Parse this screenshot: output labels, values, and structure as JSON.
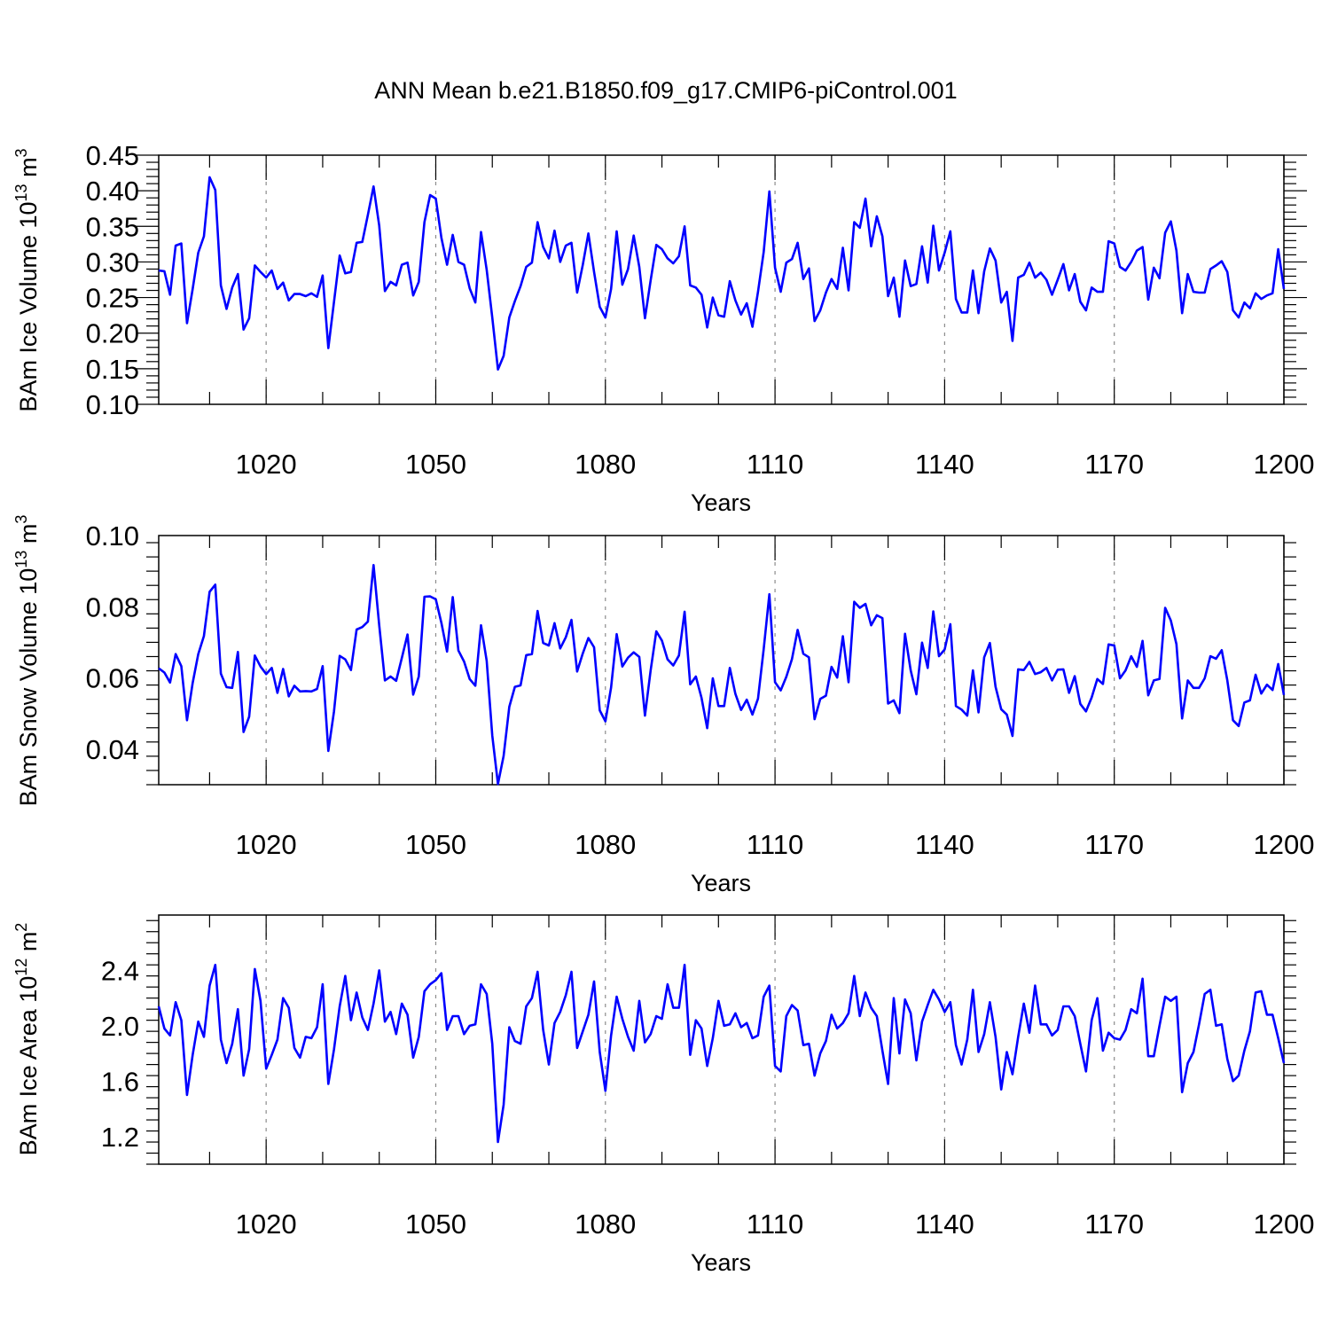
{
  "title": "ANN Mean b.e21.B1850.f09_g17.CMIP6-piControl.001",
  "line_color": "#0000ff",
  "chart_data": [
    {
      "type": "line",
      "ylabel": "BAm Ice Volume 10",
      "ylabel_exp": "13",
      "ylabel_unit": " m",
      "ylabel_unit_exp": "3",
      "xlabel": "Years",
      "xlim": [
        1001,
        1200
      ],
      "ylim": [
        0.1,
        0.45
      ],
      "xticks": [
        1020,
        1050,
        1080,
        1110,
        1140,
        1170,
        1200
      ],
      "xtick_labels": [
        "1020",
        "1050",
        "1080",
        "1110",
        "1140",
        "1170",
        "1200"
      ],
      "yticks": [
        0.1,
        0.15,
        0.2,
        0.25,
        0.3,
        0.35,
        0.4,
        0.45
      ],
      "ytick_labels": [
        "0.10",
        "0.15",
        "0.20",
        "0.25",
        "0.30",
        "0.35",
        "0.40",
        "0.45"
      ],
      "series": [
        {
          "x_start": 1001,
          "values": [
            0.288,
            0.287,
            0.254,
            0.323,
            0.326,
            0.214,
            0.262,
            0.313,
            0.336,
            0.419,
            0.401,
            0.267,
            0.234,
            0.264,
            0.283,
            0.205,
            0.221,
            0.295,
            0.286,
            0.278,
            0.288,
            0.262,
            0.271,
            0.246,
            0.255,
            0.255,
            0.252,
            0.256,
            0.251,
            0.281,
            0.179,
            0.244,
            0.309,
            0.284,
            0.286,
            0.327,
            0.328,
            0.366,
            0.406,
            0.351,
            0.259,
            0.272,
            0.267,
            0.296,
            0.299,
            0.253,
            0.272,
            0.356,
            0.394,
            0.389,
            0.334,
            0.296,
            0.338,
            0.3,
            0.296,
            0.263,
            0.243,
            0.342,
            0.289,
            0.222,
            0.149,
            0.168,
            0.222,
            0.245,
            0.266,
            0.293,
            0.299,
            0.356,
            0.321,
            0.305,
            0.344,
            0.3,
            0.323,
            0.327,
            0.257,
            0.296,
            0.34,
            0.286,
            0.237,
            0.222,
            0.262,
            0.343,
            0.268,
            0.29,
            0.337,
            0.293,
            0.221,
            0.274,
            0.324,
            0.318,
            0.305,
            0.298,
            0.308,
            0.35,
            0.267,
            0.264,
            0.254,
            0.208,
            0.25,
            0.225,
            0.223,
            0.273,
            0.246,
            0.226,
            0.242,
            0.209,
            0.258,
            0.314,
            0.399,
            0.292,
            0.258,
            0.299,
            0.304,
            0.327,
            0.276,
            0.291,
            0.217,
            0.232,
            0.257,
            0.276,
            0.262,
            0.32,
            0.26,
            0.356,
            0.348,
            0.389,
            0.322,
            0.364,
            0.336,
            0.252,
            0.278,
            0.223,
            0.302,
            0.266,
            0.269,
            0.322,
            0.271,
            0.351,
            0.288,
            0.313,
            0.343,
            0.248,
            0.229,
            0.229,
            0.288,
            0.228,
            0.287,
            0.319,
            0.302,
            0.243,
            0.258,
            0.189,
            0.278,
            0.282,
            0.299,
            0.278,
            0.285,
            0.275,
            0.254,
            0.275,
            0.297,
            0.26,
            0.283,
            0.244,
            0.232,
            0.264,
            0.258,
            0.258,
            0.329,
            0.326,
            0.293,
            0.288,
            0.3,
            0.316,
            0.321,
            0.247,
            0.292,
            0.277,
            0.341,
            0.357,
            0.316,
            0.228,
            0.283,
            0.258,
            0.257,
            0.257,
            0.29,
            0.295,
            0.301,
            0.286,
            0.232,
            0.222,
            0.243,
            0.235,
            0.256,
            0.248,
            0.253,
            0.256,
            0.318,
            0.262
          ]
        }
      ]
    },
    {
      "type": "line",
      "ylabel": "BAm Snow Volume 10",
      "ylabel_exp": "13",
      "ylabel_unit": " m",
      "ylabel_unit_exp": "3",
      "xlabel": "Years",
      "xlim": [
        1001,
        1200
      ],
      "ylim": [
        0.03,
        0.1
      ],
      "xticks": [
        1020,
        1050,
        1080,
        1110,
        1140,
        1170,
        1200
      ],
      "xtick_labels": [
        "1020",
        "1050",
        "1080",
        "1110",
        "1140",
        "1170",
        "1200"
      ],
      "yticks": [
        0.04,
        0.06,
        0.08,
        0.1
      ],
      "ytick_labels": [
        "0.04",
        "0.06",
        "0.08",
        "0.10"
      ],
      "series": [
        {
          "x_start": 1001,
          "values": [
            0.0627,
            0.0615,
            0.0587,
            0.0667,
            0.0633,
            0.0481,
            0.0586,
            0.0667,
            0.0718,
            0.0842,
            0.0862,
            0.0612,
            0.0574,
            0.0572,
            0.0673,
            0.0448,
            0.0491,
            0.0663,
            0.0632,
            0.0611,
            0.0628,
            0.0558,
            0.0625,
            0.0548,
            0.0578,
            0.0562,
            0.0563,
            0.0562,
            0.0569,
            0.0633,
            0.0395,
            0.0506,
            0.0662,
            0.0652,
            0.0622,
            0.0736,
            0.0743,
            0.0758,
            0.0917,
            0.0748,
            0.0593,
            0.0604,
            0.0592,
            0.0656,
            0.0722,
            0.0553,
            0.0604,
            0.0828,
            0.0829,
            0.0821,
            0.0755,
            0.0674,
            0.0827,
            0.0677,
            0.0646,
            0.0597,
            0.0578,
            0.0748,
            0.0648,
            0.0438,
            0.0302,
            0.0381,
            0.0519,
            0.0575,
            0.0579,
            0.0664,
            0.0667,
            0.0788,
            0.0698,
            0.0691,
            0.0754,
            0.0683,
            0.0714,
            0.0763,
            0.0618,
            0.0669,
            0.0712,
            0.0686,
            0.0509,
            0.0478,
            0.0573,
            0.0723,
            0.0632,
            0.0657,
            0.0672,
            0.0659,
            0.0494,
            0.0621,
            0.0731,
            0.0705,
            0.0652,
            0.0635,
            0.0663,
            0.0786,
            0.0582,
            0.0604,
            0.0544,
            0.0459,
            0.0599,
            0.0521,
            0.0521,
            0.0628,
            0.0555,
            0.051,
            0.0539,
            0.0497,
            0.0542,
            0.0681,
            0.0835,
            0.0588,
            0.0565,
            0.0603,
            0.0653,
            0.0735,
            0.0668,
            0.0658,
            0.0484,
            0.0541,
            0.055,
            0.0631,
            0.0601,
            0.0717,
            0.0588,
            0.0814,
            0.0797,
            0.0808,
            0.0748,
            0.0776,
            0.0768,
            0.0528,
            0.0537,
            0.0501,
            0.0724,
            0.0621,
            0.0554,
            0.0699,
            0.0628,
            0.0787,
            0.0661,
            0.068,
            0.0751,
            0.0521,
            0.0511,
            0.0494,
            0.0621,
            0.0503,
            0.0658,
            0.0698,
            0.0575,
            0.0512,
            0.0497,
            0.0437,
            0.0624,
            0.0622,
            0.0645,
            0.0611,
            0.0616,
            0.0628,
            0.0593,
            0.0623,
            0.0624,
            0.0558,
            0.0605,
            0.0527,
            0.0506,
            0.0545,
            0.0597,
            0.0583,
            0.0694,
            0.0691,
            0.0599,
            0.0621,
            0.0661,
            0.0631,
            0.0704,
            0.0551,
            0.0593,
            0.0597,
            0.0797,
            0.0761,
            0.0695,
            0.0486,
            0.0593,
            0.0572,
            0.0572,
            0.0599,
            0.0661,
            0.0654,
            0.0678,
            0.0593,
            0.0481,
            0.0465,
            0.0531,
            0.0537,
            0.0609,
            0.0556,
            0.0581,
            0.0566,
            0.0639,
            0.0552
          ]
        }
      ]
    },
    {
      "type": "line",
      "ylabel": "BAm Ice Area 10",
      "ylabel_exp": "12",
      "ylabel_unit": " m",
      "ylabel_unit_exp": "2",
      "xlabel": "Years",
      "xlim": [
        1001,
        1200
      ],
      "ylim": [
        1.0,
        2.8
      ],
      "xticks": [
        1020,
        1050,
        1080,
        1110,
        1140,
        1170,
        1200
      ],
      "xtick_labels": [
        "1020",
        "1050",
        "1080",
        "1110",
        "1140",
        "1170",
        "1200"
      ],
      "yticks": [
        1.2,
        1.6,
        2.0,
        2.4
      ],
      "ytick_labels": [
        "1.2",
        "1.6",
        "2.0",
        "2.4"
      ],
      "series": [
        {
          "x_start": 1001,
          "values": [
            2.14,
            1.98,
            1.93,
            2.17,
            2.04,
            1.5,
            1.79,
            2.03,
            1.92,
            2.29,
            2.44,
            1.9,
            1.73,
            1.87,
            2.12,
            1.64,
            1.83,
            2.41,
            2.18,
            1.69,
            1.79,
            1.9,
            2.2,
            2.13,
            1.84,
            1.77,
            1.92,
            1.91,
            1.99,
            2.3,
            1.58,
            1.83,
            2.14,
            2.36,
            2.04,
            2.24,
            2.06,
            1.97,
            2.16,
            2.4,
            2.03,
            2.1,
            1.94,
            2.16,
            2.08,
            1.77,
            1.92,
            2.25,
            2.3,
            2.33,
            2.38,
            1.97,
            2.07,
            2.07,
            1.94,
            2.0,
            2.01,
            2.3,
            2.23,
            1.87,
            1.16,
            1.43,
            1.99,
            1.89,
            1.87,
            2.14,
            2.2,
            2.39,
            1.97,
            1.72,
            2.02,
            2.1,
            2.22,
            2.39,
            1.84,
            1.96,
            2.08,
            2.32,
            1.81,
            1.53,
            1.93,
            2.21,
            2.05,
            1.92,
            1.82,
            2.18,
            1.88,
            1.94,
            2.07,
            2.05,
            2.3,
            2.13,
            2.13,
            2.44,
            1.79,
            2.04,
            1.98,
            1.71,
            1.91,
            2.18,
            2.0,
            2.01,
            2.09,
            1.99,
            2.02,
            1.91,
            1.93,
            2.21,
            2.29,
            1.71,
            1.67,
            2.07,
            2.15,
            2.11,
            1.86,
            1.87,
            1.64,
            1.8,
            1.89,
            2.08,
            1.98,
            2.02,
            2.09,
            2.36,
            2.07,
            2.24,
            2.13,
            2.07,
            1.82,
            1.58,
            2.2,
            1.8,
            2.19,
            2.09,
            1.75,
            2.03,
            2.15,
            2.26,
            2.19,
            2.1,
            2.17,
            1.86,
            1.72,
            1.9,
            2.26,
            1.81,
            1.94,
            2.17,
            1.92,
            1.54,
            1.81,
            1.65,
            1.92,
            2.16,
            1.95,
            2.29,
            2.01,
            2.01,
            1.93,
            1.97,
            2.14,
            2.14,
            2.07,
            1.87,
            1.67,
            2.04,
            2.2,
            1.82,
            1.95,
            1.91,
            1.9,
            1.97,
            2.12,
            2.09,
            2.34,
            1.78,
            1.78,
            2.0,
            2.21,
            2.18,
            2.21,
            1.52,
            1.73,
            1.81,
            2.01,
            2.23,
            2.26,
            2.0,
            2.01,
            1.76,
            1.6,
            1.64,
            1.82,
            1.96,
            2.24,
            2.25,
            2.08,
            2.08,
            1.91,
            1.73
          ]
        }
      ]
    }
  ]
}
